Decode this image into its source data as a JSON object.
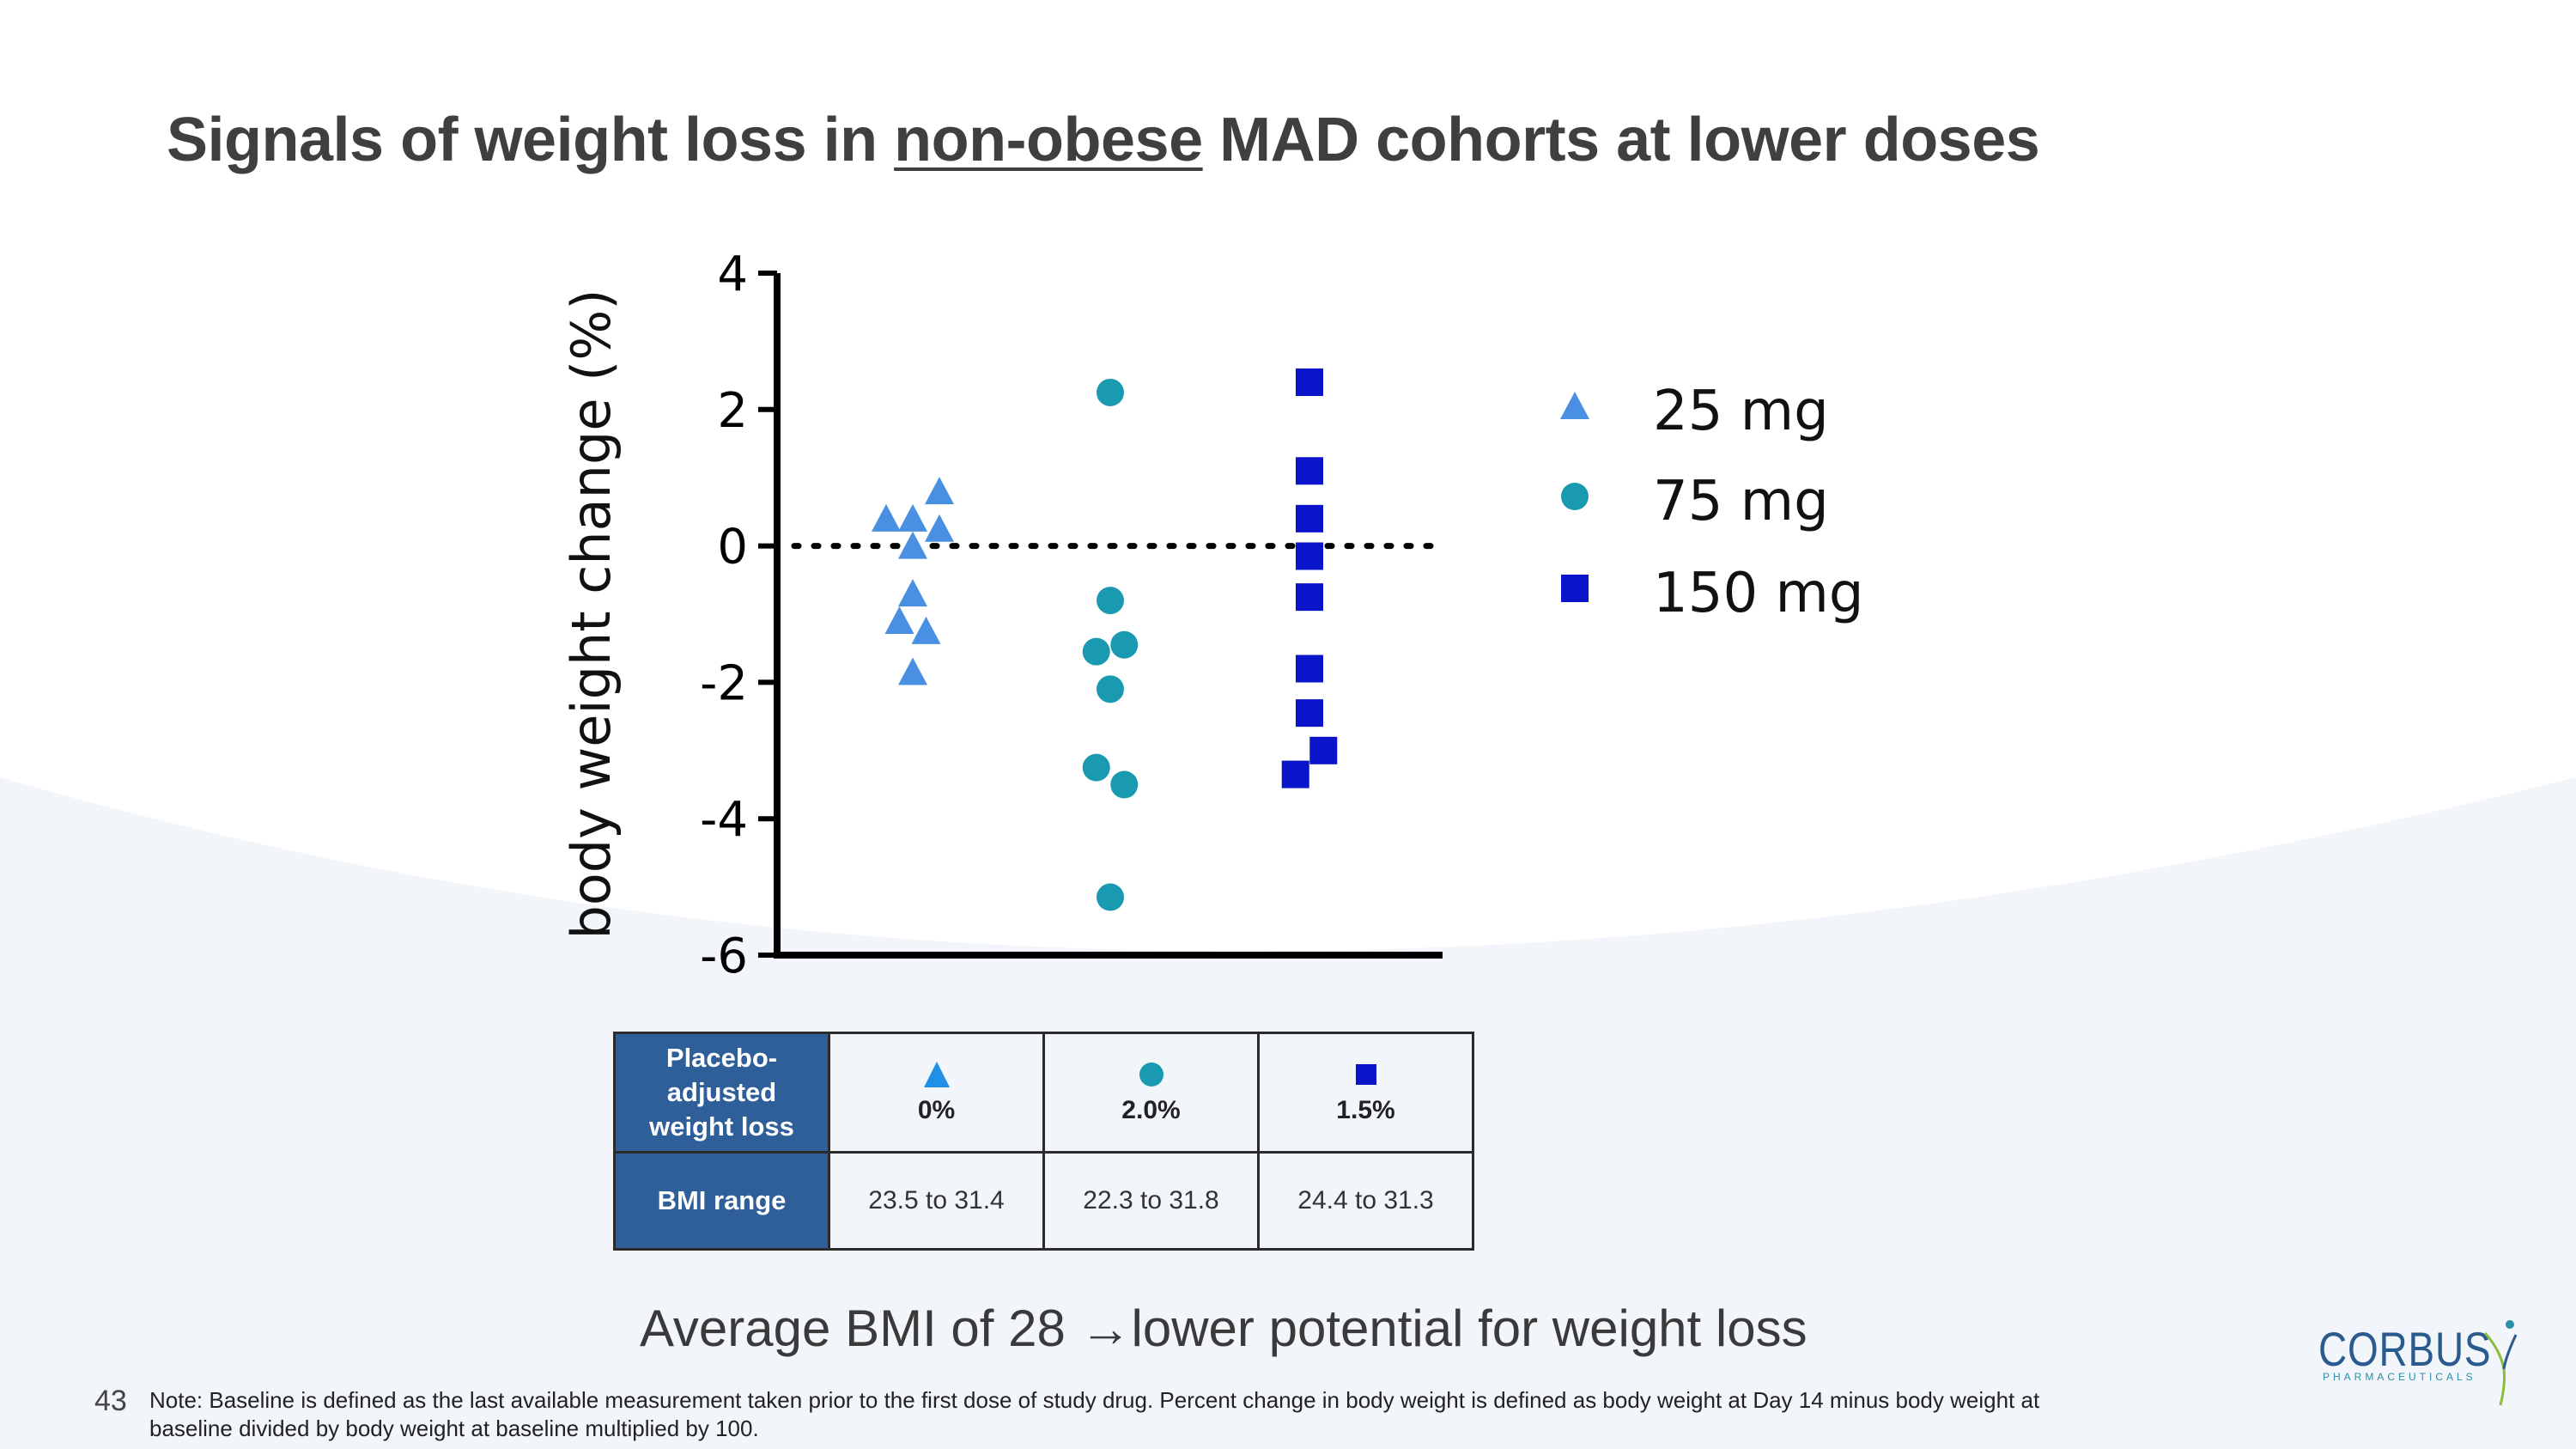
{
  "title": {
    "part1": "Signals of weight loss in ",
    "underlined": "non-obese",
    "part2": " MAD cohorts at lower doses"
  },
  "chart_data": {
    "type": "scatter",
    "ylabel": "body weight change (%)",
    "ylim": [
      -6,
      4
    ],
    "yticks": [
      4,
      2,
      0,
      -2,
      -4,
      -6
    ],
    "reference_line": 0,
    "series": [
      {
        "name": "25 mg",
        "marker": "triangle",
        "color": "#4a90e2",
        "points": [
          {
            "x": 1,
            "y": 0.4
          },
          {
            "x": 2,
            "y": 0.4
          },
          {
            "x": 2,
            "y": 0.0
          },
          {
            "x": 3,
            "y": 0.8
          },
          {
            "x": 3,
            "y": 0.25
          },
          {
            "x": 2,
            "y": -0.7
          },
          {
            "x": 1.5,
            "y": -1.1
          },
          {
            "x": 2.5,
            "y": -1.25
          },
          {
            "x": 2,
            "y": -1.85
          }
        ]
      },
      {
        "name": "75 mg",
        "marker": "circle",
        "color": "#1a9ab0",
        "points": [
          {
            "x": 2,
            "y": 2.25
          },
          {
            "x": 2,
            "y": -0.8
          },
          {
            "x": 1.5,
            "y": -1.55
          },
          {
            "x": 2.5,
            "y": -1.45
          },
          {
            "x": 2,
            "y": -2.1
          },
          {
            "x": 1.5,
            "y": -3.25
          },
          {
            "x": 2.5,
            "y": -3.5
          },
          {
            "x": 2,
            "y": -5.15
          }
        ]
      },
      {
        "name": "150 mg",
        "marker": "square",
        "color": "#0a14c8",
        "points": [
          {
            "x": 2,
            "y": 2.4
          },
          {
            "x": 2,
            "y": 1.1
          },
          {
            "x": 2,
            "y": 0.4
          },
          {
            "x": 2,
            "y": -0.15
          },
          {
            "x": 2,
            "y": -0.75
          },
          {
            "x": 2,
            "y": -1.8
          },
          {
            "x": 2,
            "y": -2.45
          },
          {
            "x": 1.5,
            "y": -3.35
          },
          {
            "x": 2.5,
            "y": -3.0
          }
        ]
      }
    ],
    "legend": [
      "25 mg",
      "75 mg",
      "150 mg"
    ]
  },
  "table": {
    "row1_header": "Placebo-adjusted weight loss",
    "row1_header_lines": [
      "Placebo-",
      "adjusted",
      "weight loss"
    ],
    "row1_values": [
      "0%",
      "2.0%",
      "1.5%"
    ],
    "row2_header": "BMI range",
    "row2_values": [
      "23.5 to 31.4",
      "22.3 to 31.8",
      "24.4 to 31.3"
    ]
  },
  "colors": {
    "table_marker_25": "#1f8fe8",
    "table_marker_75": "#1a9ab0",
    "table_marker_150": "#0a14c8",
    "header_fill": "#2f5f98"
  },
  "bottom_text": {
    "part1": "Average BMI of 28 ",
    "arrow": "→",
    "part2": "lower potential for weight loss"
  },
  "page_number": "43",
  "note": "Note: Baseline is defined as the last available measurement taken prior to the first dose of study drug. Percent change in body weight is defined as body weight at Day 14 minus body weight at baseline divided by body weight at baseline multiplied by 100.",
  "logo": {
    "name": "CORBUS",
    "sub": "PHARMACEUTICALS"
  }
}
